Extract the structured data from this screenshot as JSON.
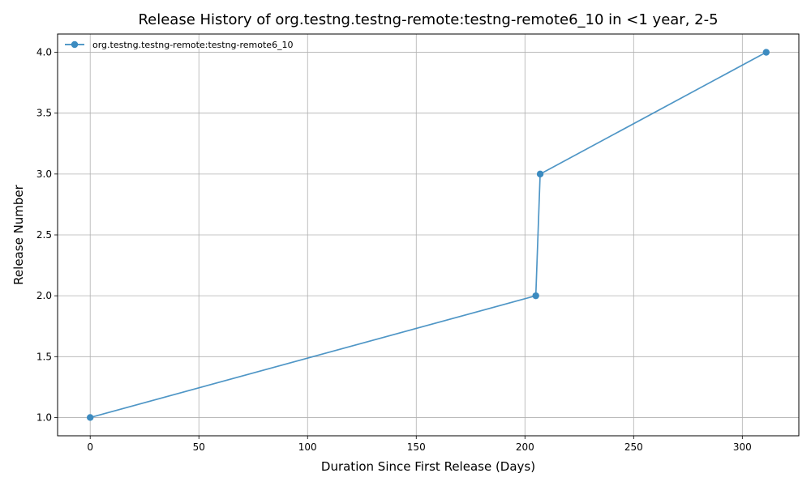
{
  "chart_data": {
    "type": "line",
    "title": "Release History of org.testng.testng-remote:testng-remote6_10 in <1 year, 2-5",
    "xlabel": "Duration Since First Release (Days)",
    "ylabel": "Release Number",
    "xlim": [
      -15,
      326
    ],
    "ylim": [
      0.85,
      4.15
    ],
    "xticks": [
      0,
      50,
      100,
      150,
      200,
      250,
      300
    ],
    "yticks": [
      1.0,
      1.5,
      2.0,
      2.5,
      3.0,
      3.5,
      4.0
    ],
    "xtick_labels": [
      "0",
      "50",
      "100",
      "150",
      "200",
      "250",
      "300"
    ],
    "ytick_labels": [
      "1.0",
      "1.5",
      "2.0",
      "2.5",
      "3.0",
      "3.5",
      "4.0"
    ],
    "grid": true,
    "legend_position": "top-left",
    "series": [
      {
        "name": "org.testng.testng-remote:testng-remote6_10",
        "color": "#3c8bc0",
        "marker": "circle",
        "x": [
          0,
          205,
          207,
          311
        ],
        "y": [
          1,
          2,
          3,
          4
        ]
      }
    ]
  }
}
